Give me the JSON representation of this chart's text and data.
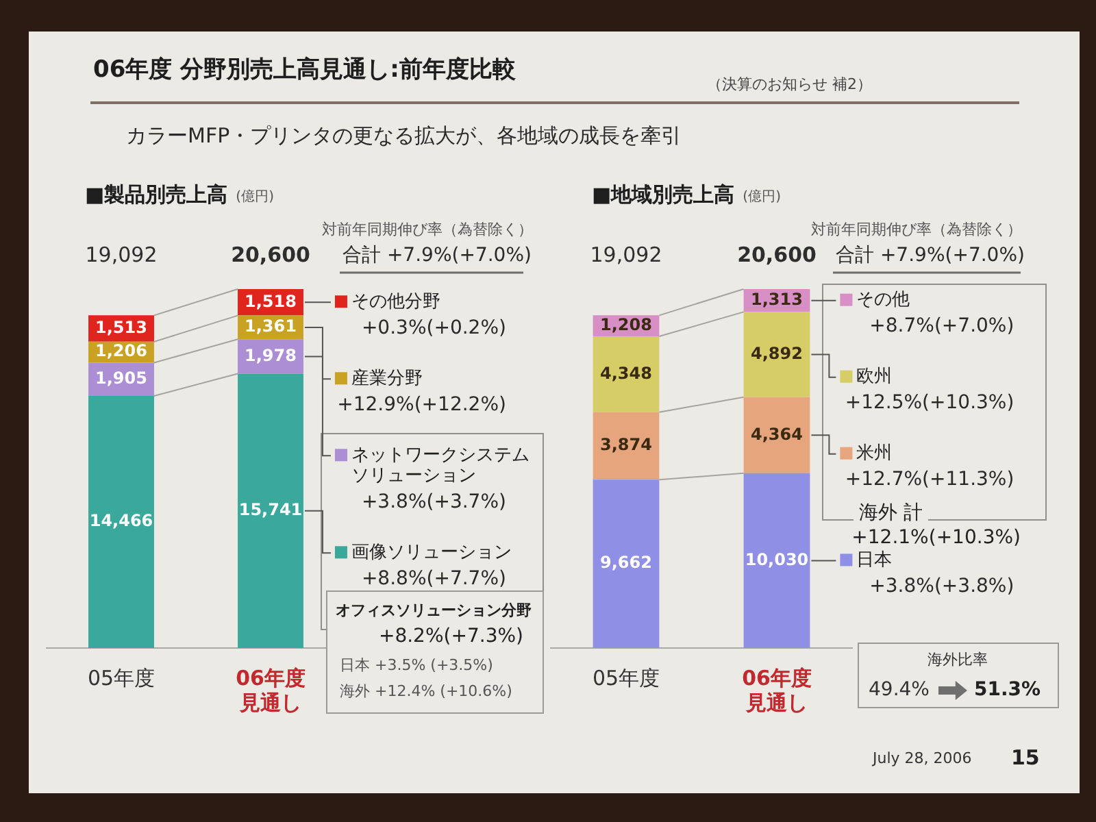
{
  "chart_data": [
    {
      "type": "other",
      "title": "06年度 分野別売上高見通し:前年度比較",
      "subtitle": "カラーMFP・プリンタの更なる拡大が、各地域の成長を牽引",
      "annotations": [
        "（決算のお知らせ 補2）",
        "July 28, 2006",
        "15"
      ]
    },
    {
      "type": "bar",
      "stacked": true,
      "title": "■製品別売上高",
      "subtitle": "(億円)",
      "categories": [
        "05年度",
        "06年度見通し"
      ],
      "legend": "right",
      "series": [
        {
          "name": "画像ソリューション",
          "color": "#3aa89a",
          "values": [
            14466,
            15741
          ],
          "value_labels": [
            "14,466",
            "15,741"
          ]
        },
        {
          "name": "ネットワークシステムソリューション",
          "color": "#ab8ed4",
          "values": [
            1905,
            1978
          ],
          "value_labels": [
            "1,905",
            "1,978"
          ]
        },
        {
          "name": "産業分野",
          "color": "#c9a224",
          "values": [
            1206,
            1361
          ],
          "value_labels": [
            "1,206",
            "1,361"
          ]
        },
        {
          "name": "その他分野",
          "color": "#e0241e",
          "values": [
            1513,
            1518
          ],
          "value_labels": [
            "1,513",
            "1,518"
          ]
        }
      ],
      "totals": [
        "19,092",
        "20,600"
      ],
      "annotations": [
        "対前年同期伸び率（為替除く）",
        "合計 +7.9%(+7.0%)",
        "+8.8%(+7.7%)",
        "+3.8%(+3.7%)",
        "+12.9%(+12.2%)",
        "+0.3%(+0.2%)",
        "オフィスソリューション分野",
        "+8.2%(+7.3%)",
        "日本 +3.5% (+3.5%)",
        "海外 +12.4% (+10.6%)"
      ]
    },
    {
      "type": "bar",
      "stacked": true,
      "title": "■地域別売上高",
      "subtitle": "(億円)",
      "categories": [
        "05年度",
        "06年度見通し"
      ],
      "legend": "right",
      "series": [
        {
          "name": "日本",
          "color": "#8f8fe6",
          "values": [
            9662,
            10030
          ],
          "value_labels": [
            "9,662",
            "10,030"
          ]
        },
        {
          "name": "米州",
          "color": "#e6a57c",
          "values": [
            3874,
            4364
          ],
          "value_labels": [
            "3,874",
            "4,364"
          ]
        },
        {
          "name": "欧州",
          "color": "#d6cd66",
          "values": [
            4348,
            4892
          ],
          "value_labels": [
            "4,348",
            "4,892"
          ]
        },
        {
          "name": "その他",
          "color": "#d88fc6",
          "values": [
            1208,
            1313
          ],
          "value_labels": [
            "1,208",
            "1,313"
          ]
        }
      ],
      "totals": [
        "19,092",
        "20,600"
      ],
      "annotations": [
        "対前年同期伸び率（為替除く）",
        "合計 +7.9%(+7.0%)",
        "+3.8%(+3.8%)",
        "+12.7%(+11.3%)",
        "+12.5%(+10.3%)",
        "+8.7%(+7.0%)",
        "海外 計",
        "+12.1%(+10.3%)",
        "海外比率",
        "49.4%",
        "51.3%"
      ]
    }
  ]
}
